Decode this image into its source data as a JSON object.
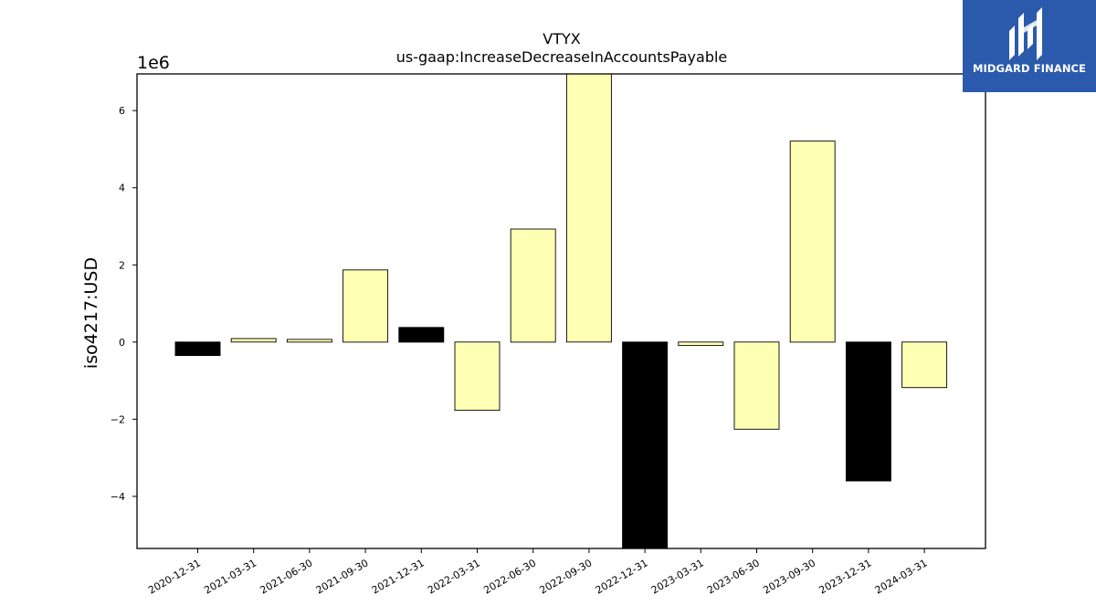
{
  "brand": {
    "name": "MIDGARD FINANCE",
    "background_color": "#2b5aad",
    "icon": "midgard-logo-icon"
  },
  "chart_data": {
    "type": "bar",
    "title": "VTYX",
    "subtitle": "us-gaap:IncreaseDecreaseInAccountsPayable",
    "ylabel": "iso4217:USD",
    "xlabel": "",
    "y_scale_label": "1e6",
    "y_multiplier": 1000000,
    "ylim": [
      -5.35,
      6.95
    ],
    "yticks": [
      -4,
      -2,
      0,
      2,
      4,
      6
    ],
    "ytick_labels": [
      "−4",
      "−2",
      "0",
      "2",
      "4",
      "6"
    ],
    "grid": false,
    "legend": "none",
    "categories": [
      "2020-12-31",
      "2021-03-31",
      "2021-06-30",
      "2021-09-30",
      "2021-12-31",
      "2022-03-31",
      "2022-06-30",
      "2022-09-30",
      "2022-12-31",
      "2023-03-31",
      "2023-06-30",
      "2023-09-30",
      "2023-12-31",
      "2024-03-31"
    ],
    "values": [
      -0.35,
      0.09,
      0.07,
      1.87,
      0.38,
      -1.77,
      2.93,
      6.95,
      -5.35,
      -0.09,
      -2.26,
      5.21,
      -3.6,
      -1.18
    ],
    "bar_colors": [
      "#000000",
      "#ffffb3",
      "#ffffb3",
      "#ffffb3",
      "#000000",
      "#ffffb3",
      "#ffffb3",
      "#ffffb3",
      "#000000",
      "#ffffb3",
      "#ffffb3",
      "#ffffb3",
      "#000000",
      "#ffffb3"
    ]
  }
}
